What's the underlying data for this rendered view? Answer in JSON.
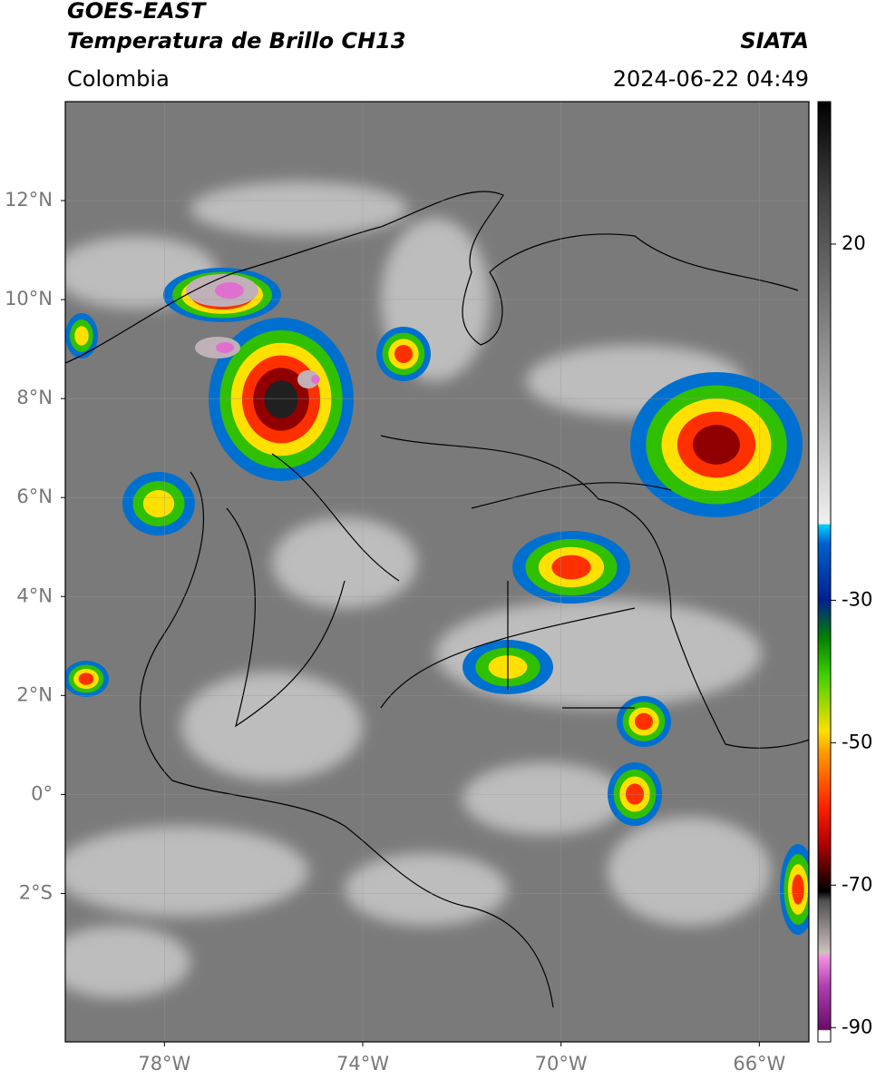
{
  "header": {
    "satellite": "GOES-EAST",
    "product": "Temperatura de Brillo CH13",
    "source": "SIATA",
    "region": "Colombia",
    "datetime": "2024-06-22 04:49"
  },
  "map": {
    "xlim": [
      -80,
      -65
    ],
    "ylim": [
      -5,
      14
    ],
    "xticks": [
      {
        "value": -78,
        "label": "78°W"
      },
      {
        "value": -74,
        "label": "74°W"
      },
      {
        "value": -70,
        "label": "70°W"
      },
      {
        "value": -66,
        "label": "66°W"
      }
    ],
    "yticks": [
      {
        "value": 12,
        "label": "12°N"
      },
      {
        "value": 10,
        "label": "10°N"
      },
      {
        "value": 8,
        "label": "8°N"
      },
      {
        "value": 6,
        "label": "6°N"
      },
      {
        "value": 4,
        "label": "4°N"
      },
      {
        "value": 2,
        "label": "2°N"
      },
      {
        "value": 0,
        "label": "0°"
      },
      {
        "value": -2,
        "label": "2°S"
      }
    ],
    "grid": true
  },
  "colorbar": {
    "lim": [
      -92,
      40
    ],
    "ticks": [
      20,
      -30,
      -50,
      -70,
      -90
    ]
  }
}
